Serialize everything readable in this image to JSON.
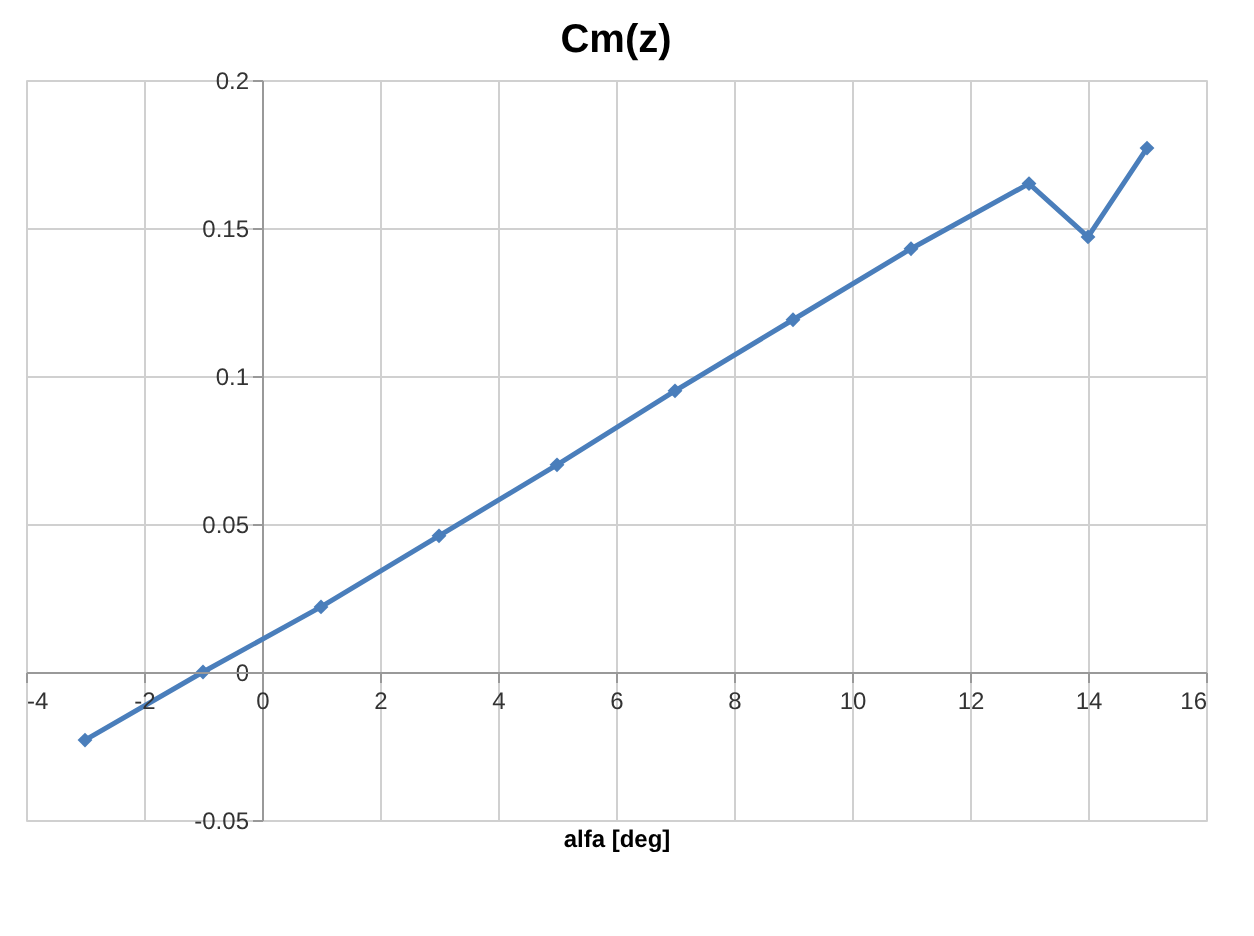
{
  "chart_data": {
    "type": "line",
    "title": "Cm(z)",
    "xlabel": "alfa [deg]",
    "x": [
      -3,
      -1,
      1,
      3,
      5,
      7,
      9,
      11,
      13,
      14,
      15
    ],
    "series": [
      {
        "color": "#4a7ebb",
        "values": [
          -0.023,
          0.0,
          0.022,
          0.046,
          0.07,
          0.095,
          0.119,
          0.143,
          0.165,
          0.147,
          0.177
        ]
      }
    ],
    "xlim": [
      -4,
      16
    ],
    "xticks": [
      -4,
      -2,
      0,
      2,
      4,
      6,
      8,
      10,
      12,
      14,
      16
    ],
    "ylim": [
      -0.05,
      0.2
    ],
    "yticks": [
      -0.05,
      0,
      0.05,
      0.1,
      0.15,
      0.2
    ],
    "grid": true,
    "marker": "diamond",
    "line_style": "solid",
    "legend": false
  }
}
